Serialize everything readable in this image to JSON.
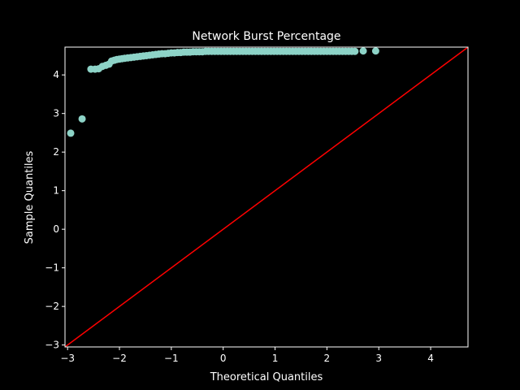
{
  "chart_data": {
    "type": "scatter",
    "title": "Network Burst Percentage",
    "xlabel": "Theoretical Quantiles",
    "ylabel": "Sample Quantiles",
    "xlim": [
      -3.05,
      4.72
    ],
    "ylim": [
      -3.05,
      4.72
    ],
    "xticks": [
      -3,
      -2,
      -1,
      0,
      1,
      2,
      3,
      4
    ],
    "yticks": [
      -3,
      -2,
      -1,
      0,
      1,
      2,
      3,
      4
    ],
    "grid": false,
    "reference_line": {
      "x": [
        -3.05,
        4.72
      ],
      "y": [
        -3.05,
        4.72
      ]
    },
    "series": [
      {
        "x": [
          -2.94,
          -2.72,
          -2.55,
          -2.47,
          -2.4,
          -2.33,
          -2.26,
          -2.2,
          -2.15,
          -2.1,
          -2.05,
          -2.0,
          -1.95,
          -1.9,
          -1.84,
          -1.78,
          -1.72,
          -1.66,
          -1.6,
          -1.54,
          -1.48,
          -1.42,
          -1.36,
          -1.3,
          -1.24,
          -1.18,
          -1.12,
          -1.06,
          -1.0,
          -0.94,
          -0.88,
          -0.82,
          -0.76,
          -0.7,
          -0.64,
          -0.58,
          -0.52,
          -0.46,
          -0.4,
          -0.34,
          -0.28,
          -0.22,
          -0.16,
          -0.1,
          -0.04,
          0.02,
          0.08,
          0.14,
          0.2,
          0.26,
          0.32,
          0.38,
          0.44,
          0.5,
          0.56,
          0.62,
          0.68,
          0.74,
          0.8,
          0.86,
          0.92,
          0.98,
          1.04,
          1.1,
          1.16,
          1.22,
          1.28,
          1.34,
          1.4,
          1.46,
          1.52,
          1.58,
          1.64,
          1.7,
          1.76,
          1.82,
          1.88,
          1.94,
          2.0,
          2.06,
          2.12,
          2.18,
          2.24,
          2.3,
          2.36,
          2.42,
          2.48,
          2.54,
          2.7,
          2.94
        ],
        "y": [
          2.49,
          2.86,
          4.15,
          4.15,
          4.16,
          4.22,
          4.25,
          4.28,
          4.36,
          4.38,
          4.4,
          4.41,
          4.42,
          4.43,
          4.44,
          4.45,
          4.46,
          4.47,
          4.48,
          4.49,
          4.5,
          4.51,
          4.52,
          4.53,
          4.54,
          4.55,
          4.55,
          4.56,
          4.57,
          4.57,
          4.58,
          4.58,
          4.59,
          4.59,
          4.59,
          4.6,
          4.6,
          4.6,
          4.6,
          4.61,
          4.61,
          4.61,
          4.61,
          4.61,
          4.61,
          4.61,
          4.61,
          4.61,
          4.61,
          4.61,
          4.61,
          4.61,
          4.61,
          4.61,
          4.61,
          4.61,
          4.61,
          4.61,
          4.61,
          4.61,
          4.61,
          4.61,
          4.61,
          4.61,
          4.61,
          4.61,
          4.61,
          4.61,
          4.61,
          4.61,
          4.61,
          4.61,
          4.61,
          4.61,
          4.61,
          4.61,
          4.61,
          4.61,
          4.61,
          4.61,
          4.61,
          4.61,
          4.61,
          4.61,
          4.61,
          4.61,
          4.61,
          4.61,
          4.62,
          4.62
        ]
      }
    ],
    "colors": {
      "background": "#000000",
      "axes": "#ffffff",
      "marker": "#8dd3c7",
      "reference_line": "#ff0000"
    }
  }
}
